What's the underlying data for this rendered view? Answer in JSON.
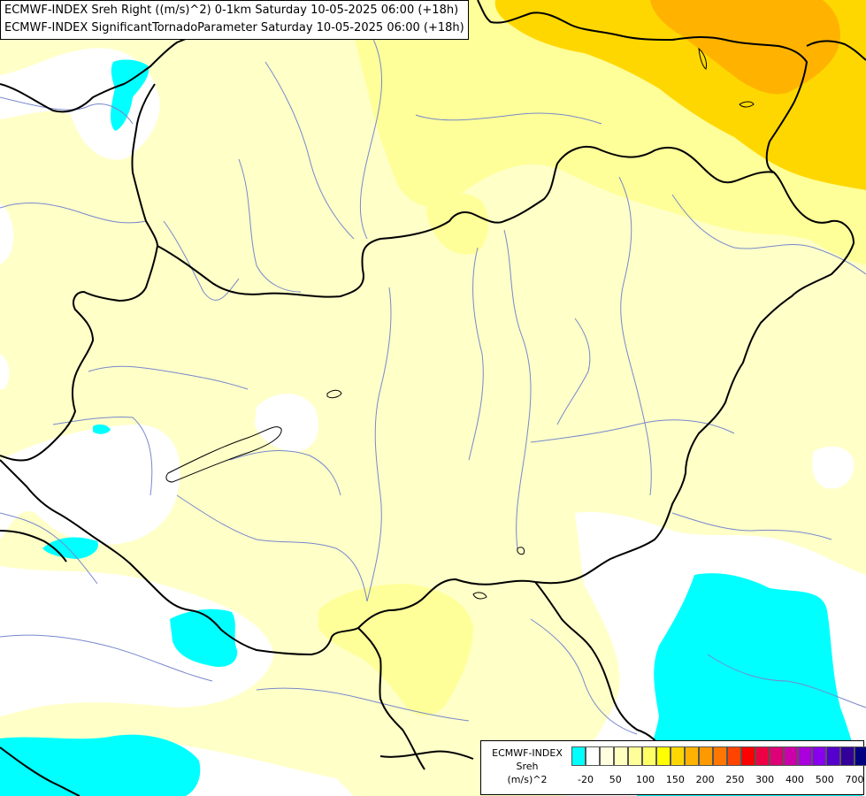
{
  "title": {
    "line1": "ECMWF-INDEX Sreh Right ((m/s)^2) 0-1km Saturday 10-05-2025 06:00 (+18h)",
    "line2": "ECMWF-INDEX SignificantTornadoParameter Saturday 10-05-2025 06:00 (+18h)"
  },
  "legend": {
    "model": "ECMWF-INDEX",
    "parameter": "Sreh",
    "unit": "(m/s)^2",
    "ticks": [
      "-20",
      "50",
      "100",
      "150",
      "200",
      "250",
      "300",
      "400",
      "500",
      "700"
    ],
    "colors": [
      "#00ffff",
      "#ffffff",
      "#ffffe0",
      "#ffffc0",
      "#ffff99",
      "#ffff66",
      "#ffff00",
      "#ffd700",
      "#ffb300",
      "#ff9900",
      "#ff7700",
      "#ff4400",
      "#ff0000",
      "#ee0044",
      "#dd0077",
      "#cc00aa",
      "#aa00dd",
      "#8800ee",
      "#5500cc",
      "#330099",
      "#000080"
    ]
  },
  "colors": {
    "background_field": "#ffffc8",
    "weak_field": "#ffffff",
    "negative_field": "#00ffff",
    "moderate_field": "#ffff99",
    "strong_field": "#ffd700",
    "peak_field": "#ffb300",
    "border": "#000000",
    "river": "#7788cc"
  }
}
